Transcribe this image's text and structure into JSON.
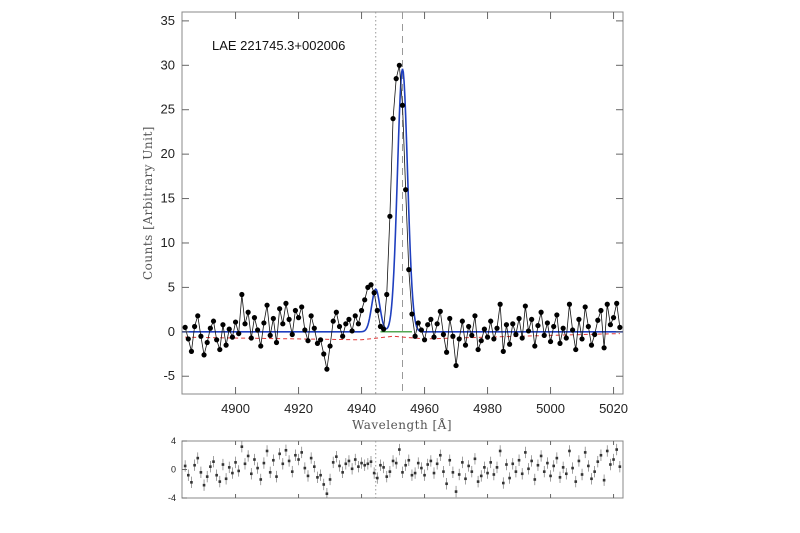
{
  "chart_data": [
    {
      "type": "line",
      "annotation": "LAE 221745.3+002006",
      "xlabel": "Wavelength [Å]",
      "ylabel": "Counts [Arbitrary Unit]",
      "xlim": [
        4883,
        5023
      ],
      "ylim": [
        -7,
        36
      ],
      "x_ticks": [
        4900,
        4920,
        4940,
        4960,
        4980,
        5000,
        5020
      ],
      "x_tick_labels": [
        "4900",
        "4920",
        "4940",
        "4960",
        "4980",
        "5000",
        "5020"
      ],
      "y_ticks": [
        -5,
        0,
        5,
        10,
        15,
        20,
        25,
        30,
        35
      ],
      "y_tick_labels": [
        "-5",
        "0",
        "5",
        "10",
        "15",
        "20",
        "25",
        "30",
        "35"
      ],
      "reference_lines": [
        {
          "style": "dotted",
          "x": 4944.5
        },
        {
          "style": "dashed",
          "x": 4953
        }
      ],
      "series": [
        {
          "style": "data points joined by thin line",
          "color": "#000000",
          "x": [
            4884,
            4885,
            4886,
            4887,
            4888,
            4889,
            4890,
            4891,
            4892,
            4893,
            4894,
            4895,
            4896,
            4897,
            4898,
            4899,
            4900,
            4901,
            4902,
            4903,
            4904,
            4905,
            4906,
            4907,
            4908,
            4909,
            4910,
            4911,
            4912,
            4913,
            4914,
            4915,
            4916,
            4917,
            4918,
            4919,
            4920,
            4921,
            4922,
            4923,
            4924,
            4925,
            4926,
            4927,
            4928,
            4929,
            4930,
            4931,
            4932,
            4933,
            4934,
            4935,
            4936,
            4937,
            4938,
            4939,
            4940,
            4941,
            4942,
            4943,
            4944,
            4945,
            4946,
            4947,
            4948,
            4949,
            4950,
            4951,
            4952,
            4953,
            4954,
            4955,
            4956,
            4957,
            4958,
            4959,
            4960,
            4961,
            4962,
            4963,
            4964,
            4965,
            4966,
            4967,
            4968,
            4969,
            4970,
            4971,
            4972,
            4973,
            4974,
            4975,
            4976,
            4977,
            4978,
            4979,
            4980,
            4981,
            4982,
            4983,
            4984,
            4985,
            4986,
            4987,
            4988,
            4989,
            4990,
            4991,
            4992,
            4993,
            4994,
            4995,
            4996,
            4997,
            4998,
            4999,
            5000,
            5001,
            5002,
            5003,
            5004,
            5005,
            5006,
            5007,
            5008,
            5009,
            5010,
            5011,
            5012,
            5013,
            5014,
            5015,
            5016,
            5017,
            5018,
            5019,
            5020,
            5021,
            5022
          ],
          "y": [
            0.5,
            -0.8,
            -2.2,
            0.6,
            1.8,
            -0.5,
            -2.6,
            -1.2,
            0.4,
            1.2,
            -0.9,
            -2.0,
            0.8,
            -1.5,
            0.3,
            -0.6,
            1.1,
            -0.2,
            4.2,
            0.9,
            2.2,
            -0.7,
            1.6,
            0.2,
            -1.6,
            1.0,
            3.0,
            -0.4,
            1.5,
            -1.2,
            2.6,
            0.9,
            3.2,
            1.4,
            -0.3,
            2.4,
            1.6,
            2.8,
            0.2,
            -1.0,
            1.8,
            0.4,
            -1.3,
            -0.9,
            -2.5,
            -4.2,
            -1.6,
            1.2,
            2.2,
            0.6,
            -0.5,
            0.9,
            1.4,
            0.1,
            1.8,
            0.9,
            2.4,
            3.6,
            5.0,
            5.3,
            4.4,
            2.4,
            0.6,
            0.3,
            4.2,
            13.0,
            24.0,
            28.5,
            30.0,
            25.5,
            16.0,
            7.0,
            2.0,
            -0.5,
            1.0,
            0.2,
            -0.9,
            0.8,
            1.4,
            -0.6,
            0.9,
            2.3,
            -0.3,
            -2.3,
            1.5,
            -0.5,
            -3.8,
            -0.8,
            1.2,
            -1.5,
            0.6,
            -0.4,
            1.8,
            -2.0,
            -1.0,
            0.3,
            -0.6,
            1.2,
            -0.8,
            0.4,
            3.1,
            -2.2,
            0.8,
            -1.4,
            0.9,
            -0.3,
            1.5,
            -0.7,
            2.9,
            0.1,
            1.4,
            -1.6,
            0.7,
            2.2,
            -0.4,
            1.0,
            -1.1,
            0.6,
            1.9,
            -1.3,
            0.4,
            -0.7,
            3.1,
            0.2,
            -2.0,
            1.4,
            -0.8,
            2.8,
            0.6,
            -1.5,
            -0.3,
            1.3,
            2.4,
            -1.8,
            3.1,
            0.8,
            1.6,
            3.2,
            0.5
          ]
        },
        {
          "style": "fit",
          "color": "#1f3fbf",
          "model": "gaussian",
          "components": [
            {
              "center": 4953,
              "amplitude": 29.6,
              "sigma": 1.6
            },
            {
              "center": 4944.5,
              "amplitude": 4.8,
              "sigma": 1.3
            }
          ]
        },
        {
          "style": "fit component",
          "color": "#1a8a1a",
          "x": [
            4946,
            4956
          ],
          "y": [
            0,
            0
          ]
        },
        {
          "style": "dashed",
          "color": "#e03a3a",
          "x": [
            4884,
            4900,
            4920,
            4940,
            4950,
            4960,
            4980,
            5000,
            5022
          ],
          "y": [
            -0.6,
            -0.7,
            -0.8,
            -0.9,
            -0.5,
            -0.8,
            -0.6,
            -0.4,
            -0.2
          ]
        }
      ]
    },
    {
      "type": "scatter",
      "role": "residuals",
      "xlim": [
        4883,
        5023
      ],
      "ylim": [
        -4,
        4
      ],
      "y_ticks": [
        -4,
        0,
        4
      ],
      "y_tick_labels": [
        "-4",
        "0",
        "4"
      ],
      "reference_lines": [
        {
          "style": "dotted",
          "x": 4944.5
        }
      ],
      "series": [
        {
          "style": "points with error bars",
          "color": "#333333",
          "error": 0.8,
          "x": [
            4884,
            4885,
            4886,
            4887,
            4888,
            4889,
            4890,
            4891,
            4892,
            4893,
            4894,
            4895,
            4896,
            4897,
            4898,
            4899,
            4900,
            4901,
            4902,
            4903,
            4904,
            4905,
            4906,
            4907,
            4908,
            4909,
            4910,
            4911,
            4912,
            4913,
            4914,
            4915,
            4916,
            4917,
            4918,
            4919,
            4920,
            4921,
            4922,
            4923,
            4924,
            4925,
            4926,
            4927,
            4928,
            4929,
            4930,
            4931,
            4932,
            4933,
            4934,
            4935,
            4936,
            4937,
            4938,
            4939,
            4940,
            4941,
            4942,
            4943,
            4944,
            4945,
            4946,
            4947,
            4948,
            4949,
            4950,
            4951,
            4952,
            4953,
            4954,
            4955,
            4956,
            4957,
            4958,
            4959,
            4960,
            4961,
            4962,
            4963,
            4964,
            4965,
            4966,
            4967,
            4968,
            4969,
            4970,
            4971,
            4972,
            4973,
            4974,
            4975,
            4976,
            4977,
            4978,
            4979,
            4980,
            4981,
            4982,
            4983,
            4984,
            4985,
            4986,
            4987,
            4988,
            4989,
            4990,
            4991,
            4992,
            4993,
            4994,
            4995,
            4996,
            4997,
            4998,
            4999,
            5000,
            5001,
            5002,
            5003,
            5004,
            5005,
            5006,
            5007,
            5008,
            5009,
            5010,
            5011,
            5012,
            5013,
            5014,
            5015,
            5016,
            5017,
            5018,
            5019,
            5020,
            5021,
            5022
          ],
          "y": [
            0.5,
            -0.8,
            -1.8,
            0.6,
            1.6,
            -0.4,
            -2.2,
            -1.0,
            0.4,
            1.1,
            -0.8,
            -1.7,
            0.7,
            -1.3,
            0.3,
            -0.5,
            1.0,
            -0.2,
            3.2,
            0.8,
            1.9,
            -0.6,
            1.4,
            0.2,
            -1.4,
            0.9,
            2.6,
            -0.4,
            1.3,
            -1.0,
            2.2,
            0.8,
            2.7,
            1.2,
            -0.3,
            2.0,
            1.4,
            2.4,
            0.2,
            -0.9,
            1.6,
            0.4,
            -1.1,
            -0.8,
            -2.1,
            -3.4,
            -1.4,
            1.0,
            1.8,
            0.5,
            -0.4,
            0.8,
            1.2,
            0.1,
            1.4,
            0.4,
            0.9,
            0.6,
            0.8,
            1.1,
            -0.5,
            -1.2,
            0.6,
            0.3,
            -1.0,
            -0.3,
            1.2,
            0.9,
            2.8,
            -0.4,
            0.6,
            1.3,
            -0.8,
            -0.5,
            0.9,
            0.2,
            -0.8,
            0.7,
            1.2,
            -0.5,
            0.8,
            2.0,
            -0.3,
            -2.0,
            1.3,
            -0.4,
            -3.1,
            -0.7,
            1.0,
            -1.3,
            0.5,
            -0.3,
            1.5,
            -1.7,
            -0.9,
            0.3,
            -0.5,
            1.0,
            -0.7,
            0.3,
            2.6,
            -1.9,
            0.7,
            -1.2,
            0.8,
            -0.3,
            1.3,
            -0.6,
            2.4,
            0.1,
            1.2,
            -1.4,
            0.6,
            1.9,
            -0.3,
            0.9,
            -0.9,
            0.5,
            1.6,
            -1.1,
            0.3,
            -0.6,
            2.6,
            0.2,
            -1.7,
            1.2,
            -0.7,
            2.4,
            0.5,
            -1.3,
            -0.3,
            1.1,
            2.0,
            -1.5,
            2.6,
            0.7,
            1.4,
            2.8,
            0.4
          ]
        }
      ]
    }
  ]
}
